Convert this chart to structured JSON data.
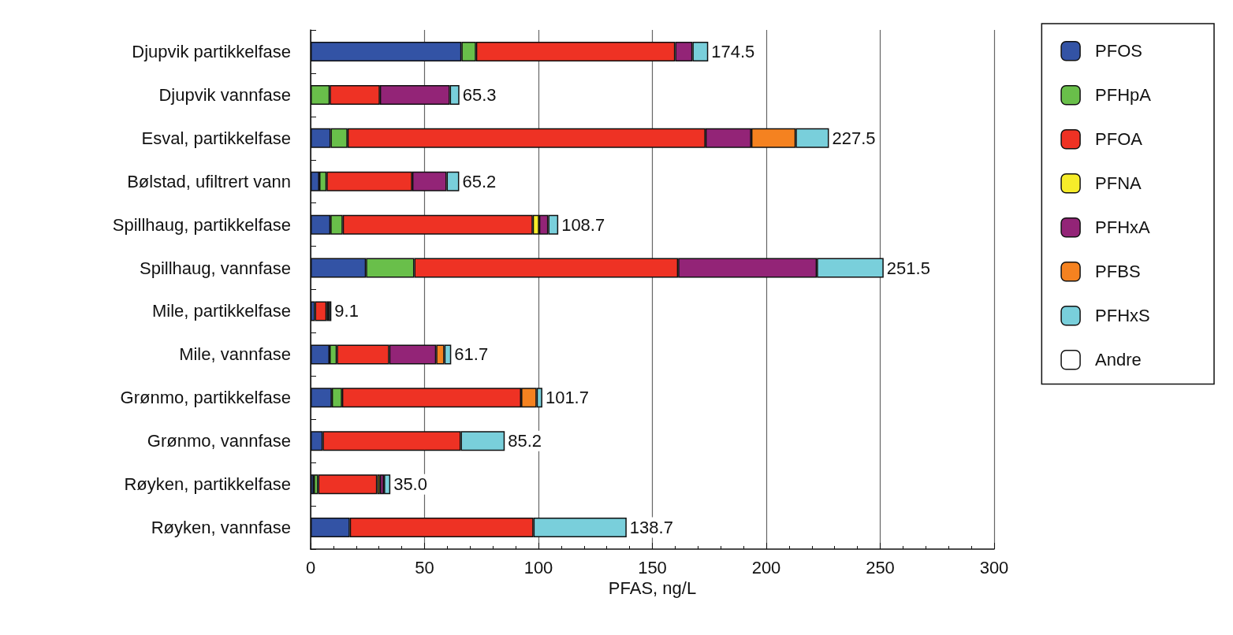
{
  "chart_data": {
    "type": "bar",
    "orientation": "horizontal",
    "stacked": true,
    "xlabel": "PFAS, ng/L",
    "categories": [
      "Djupvik partikkelfase",
      "Djupvik vannfase",
      "Esval, partikkelfase",
      "Bølstad, ufiltrert vann",
      "Spillhaug, partikkelfase",
      "Spillhaug, vannfase",
      "Mile, partikkelfase",
      "Mile, vannfase",
      "Grønmo, partikkelfase",
      "Grønmo, vannfase",
      "Røyken, partikkelfase",
      "Røyken, vannfase"
    ],
    "series": [
      {
        "name": "PFOS",
        "color": "#3353a5",
        "values": [
          66.2,
          null,
          8.8,
          3.8,
          8.7,
          24.3,
          1.9,
          8.3,
          9.3,
          5.3,
          1.4,
          17.2
        ]
      },
      {
        "name": "PFHpA",
        "color": "#69bf4a",
        "values": [
          6.4,
          8.4,
          7.4,
          3.2,
          5.4,
          21.2,
          null,
          3.2,
          4.5,
          null,
          1.9,
          null
        ]
      },
      {
        "name": "PFOA",
        "color": "#ee3224",
        "values": [
          87.4,
          22.0,
          157.1,
          37.6,
          83.4,
          115.8,
          5.1,
          23.0,
          78.6,
          60.6,
          25.9,
          80.6
        ]
      },
      {
        "name": "PFNA",
        "color": "#f6ec2a",
        "values": [
          null,
          null,
          null,
          null,
          2.8,
          null,
          null,
          null,
          null,
          null,
          1.2,
          null
        ]
      },
      {
        "name": "PFHxA",
        "color": "#932477",
        "values": [
          7.6,
          30.7,
          20.1,
          15.1,
          4.0,
          60.9,
          1.0,
          20.6,
          null,
          null,
          1.8,
          null
        ]
      },
      {
        "name": "PFBS",
        "color": "#f58220",
        "values": [
          null,
          null,
          19.5,
          null,
          null,
          null,
          null,
          3.6,
          6.8,
          null,
          null,
          null
        ]
      },
      {
        "name": "PFHxS",
        "color": "#79cfdb",
        "values": [
          6.9,
          4.2,
          14.6,
          5.5,
          4.4,
          29.3,
          1.1,
          3.0,
          2.5,
          19.3,
          2.8,
          40.9
        ]
      },
      {
        "name": "Andre",
        "color": "#ffffff",
        "values": [
          null,
          null,
          null,
          null,
          null,
          null,
          null,
          null,
          null,
          null,
          null,
          null
        ]
      }
    ],
    "totals": [
      "174.5",
      "65.3",
      "227.5",
      "65.2",
      "108.7",
      "251.5",
      "9.1",
      "61.7",
      "101.7",
      "85.2",
      "35.0",
      "138.7"
    ],
    "xlim": [
      0,
      300
    ],
    "xticks": [
      0,
      50,
      100,
      150,
      200,
      250,
      300
    ],
    "grid": "x",
    "legend": "right"
  }
}
